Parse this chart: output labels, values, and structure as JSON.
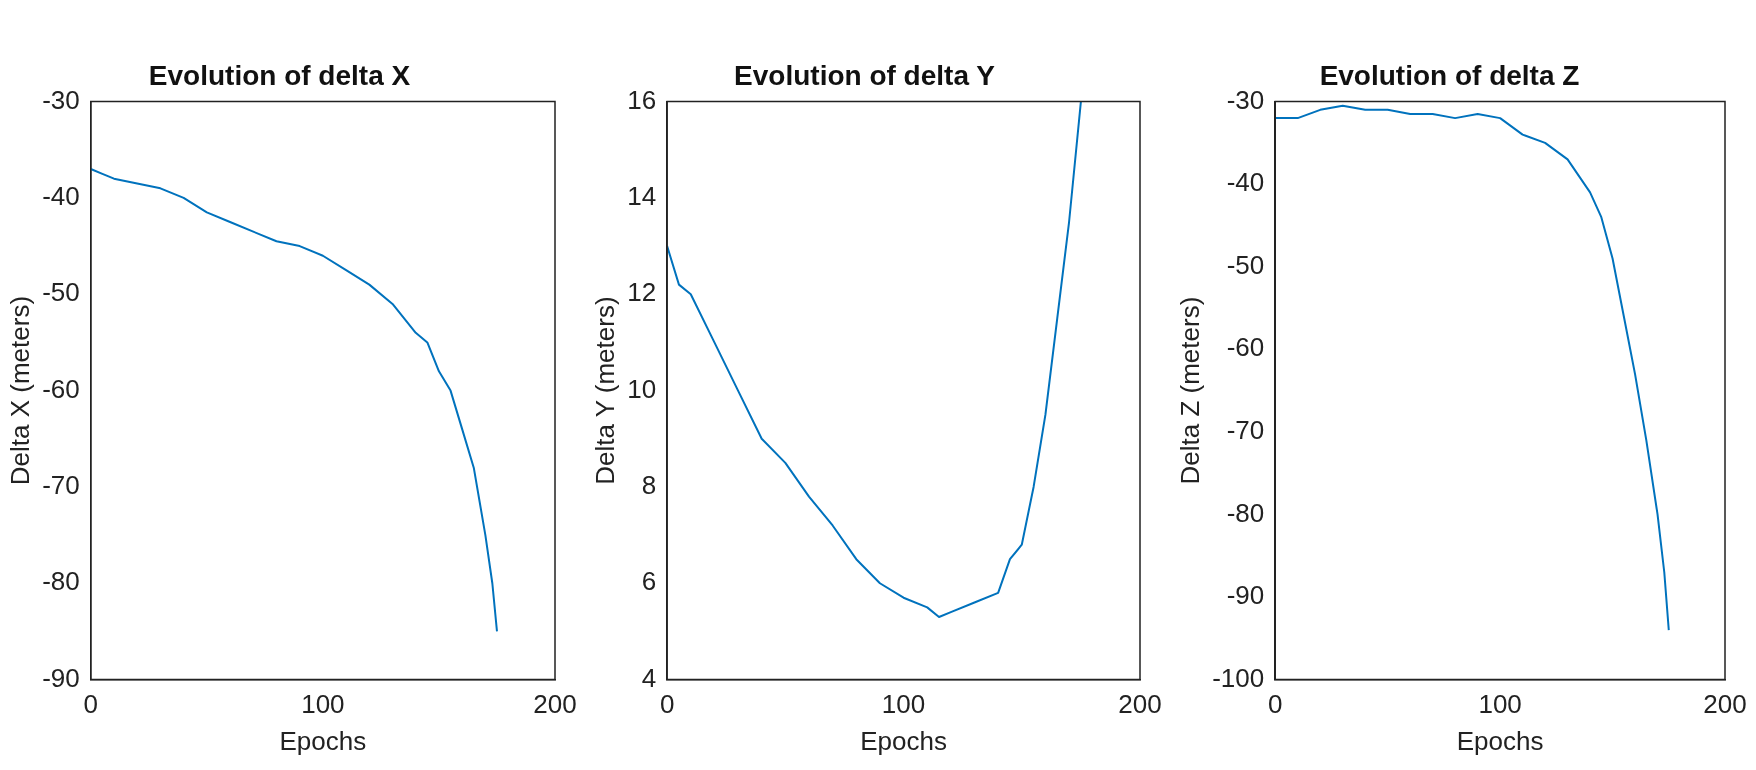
{
  "chart_data": [
    {
      "type": "line",
      "title": "Evolution of delta X",
      "xlabel": "Epochs",
      "ylabel": "Delta X (meters)",
      "color": "#0072bd",
      "marker": "none",
      "x": [
        0,
        5,
        10,
        20,
        30,
        40,
        50,
        60,
        70,
        80,
        90,
        100,
        110,
        120,
        130,
        140,
        145,
        150,
        155,
        160,
        165,
        170,
        173,
        175
      ],
      "values": [
        -37,
        -37.5,
        -38,
        -38.5,
        -39,
        -40,
        -41.5,
        -42.5,
        -43.5,
        -44.5,
        -45,
        -46,
        -47.5,
        -49,
        -51,
        -54,
        -55,
        -58,
        -60,
        -64,
        -68,
        -75,
        -80,
        -85
      ],
      "xlim": [
        0,
        200
      ],
      "xticks": [
        0,
        100,
        200
      ],
      "ylim": [
        -90,
        -30
      ],
      "yticks": [
        -90,
        -80,
        -70,
        -60,
        -50,
        -40,
        -30
      ]
    },
    {
      "type": "line",
      "title": "Evolution of delta Y",
      "xlabel": "Epochs",
      "ylabel": "Delta Y (meters)",
      "color": "#0072bd",
      "marker": "none",
      "x": [
        0,
        5,
        10,
        20,
        30,
        40,
        50,
        60,
        70,
        80,
        90,
        100,
        110,
        115,
        120,
        130,
        140,
        145,
        150,
        155,
        160,
        165,
        170,
        175
      ],
      "values": [
        13,
        12.2,
        12,
        11,
        10,
        9,
        8.5,
        7.8,
        7.2,
        6.5,
        6,
        5.7,
        5.5,
        5.3,
        5.4,
        5.6,
        5.8,
        6.5,
        6.8,
        8,
        9.5,
        11.5,
        13.5,
        16
      ],
      "xlim": [
        0,
        200
      ],
      "xticks": [
        0,
        100,
        200
      ],
      "ylim": [
        4,
        16
      ],
      "yticks": [
        4,
        6,
        8,
        10,
        12,
        14,
        16
      ]
    },
    {
      "type": "line",
      "title": "Evolution of delta Z",
      "xlabel": "Epochs",
      "ylabel": "Delta Z (meters)",
      "color": "#0072bd",
      "marker": "none",
      "x": [
        0,
        10,
        20,
        30,
        40,
        50,
        60,
        70,
        80,
        90,
        100,
        110,
        120,
        130,
        140,
        145,
        150,
        155,
        160,
        165,
        170,
        173,
        175
      ],
      "values": [
        -32,
        -32,
        -31,
        -30.5,
        -31,
        -31,
        -31.5,
        -31.5,
        -32,
        -31.5,
        -32,
        -34,
        -35,
        -37,
        -41,
        -44,
        -49,
        -56,
        -63,
        -71,
        -80,
        -87,
        -94
      ],
      "xlim": [
        0,
        200
      ],
      "xticks": [
        0,
        100,
        200
      ],
      "ylim": [
        -100,
        -30
      ],
      "yticks": [
        -100,
        -90,
        -80,
        -70,
        -60,
        -50,
        -40,
        -30
      ]
    }
  ]
}
